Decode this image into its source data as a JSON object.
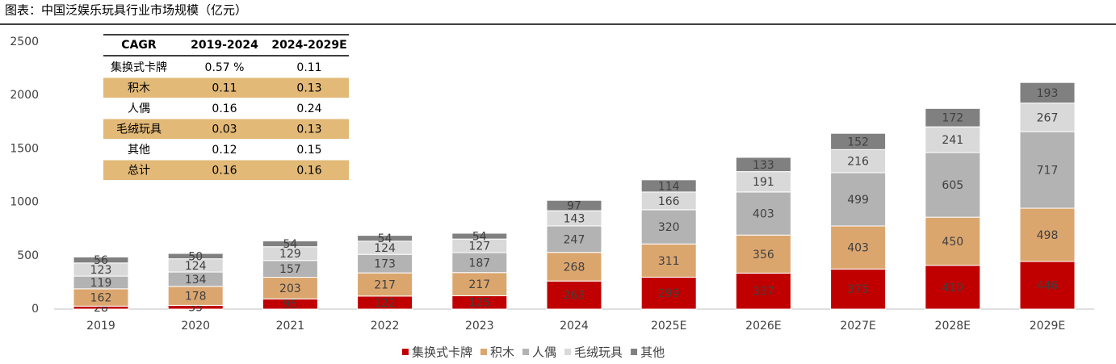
{
  "chart_data": {
    "type": "stacked-bar",
    "title": "图表：中国泛娱乐玩具行业市场规模（亿元）",
    "categories": [
      "2019",
      "2020",
      "2021",
      "2022",
      "2023",
      "2024",
      "2025E",
      "2026E",
      "2027E",
      "2028E",
      "2029E"
    ],
    "series": [
      {
        "name": "集换式卡牌",
        "color": "#c00000",
        "values": [
          28,
          35,
          95,
          122,
          125,
          263,
          299,
          337,
          375,
          410,
          446
        ]
      },
      {
        "name": "积木",
        "color": "#dba66e",
        "values": [
          162,
          178,
          203,
          217,
          217,
          268,
          311,
          356,
          403,
          450,
          498
        ]
      },
      {
        "name": "人偶",
        "color": "#b3b3b3",
        "values": [
          119,
          134,
          157,
          173,
          187,
          247,
          320,
          403,
          499,
          605,
          717
        ]
      },
      {
        "name": "毛绒玩具",
        "color": "#d9d9d9",
        "values": [
          123,
          124,
          129,
          124,
          127,
          143,
          166,
          191,
          216,
          241,
          267
        ]
      },
      {
        "name": "其他",
        "color": "#808080",
        "values": [
          56,
          50,
          54,
          54,
          54,
          97,
          114,
          133,
          152,
          172,
          193
        ]
      }
    ],
    "ylim": [
      0,
      2500
    ],
    "yticks": [
      0,
      500,
      1000,
      1500,
      2000,
      2500
    ],
    "grid": false,
    "legend": "bottom"
  },
  "table": {
    "header": [
      "CAGR",
      "2019-2024",
      "2024-2029E"
    ],
    "rows": [
      [
        "集换式卡牌",
        "0.57 %",
        "0.11"
      ],
      [
        "积木",
        "0.11",
        "0.13"
      ],
      [
        "人偶",
        "0.16",
        "0.24"
      ],
      [
        "毛绒玩具",
        "0.03",
        "0.13"
      ],
      [
        "其他",
        "0.12",
        "0.15"
      ],
      [
        "总计",
        "0.16",
        "0.16"
      ]
    ]
  }
}
